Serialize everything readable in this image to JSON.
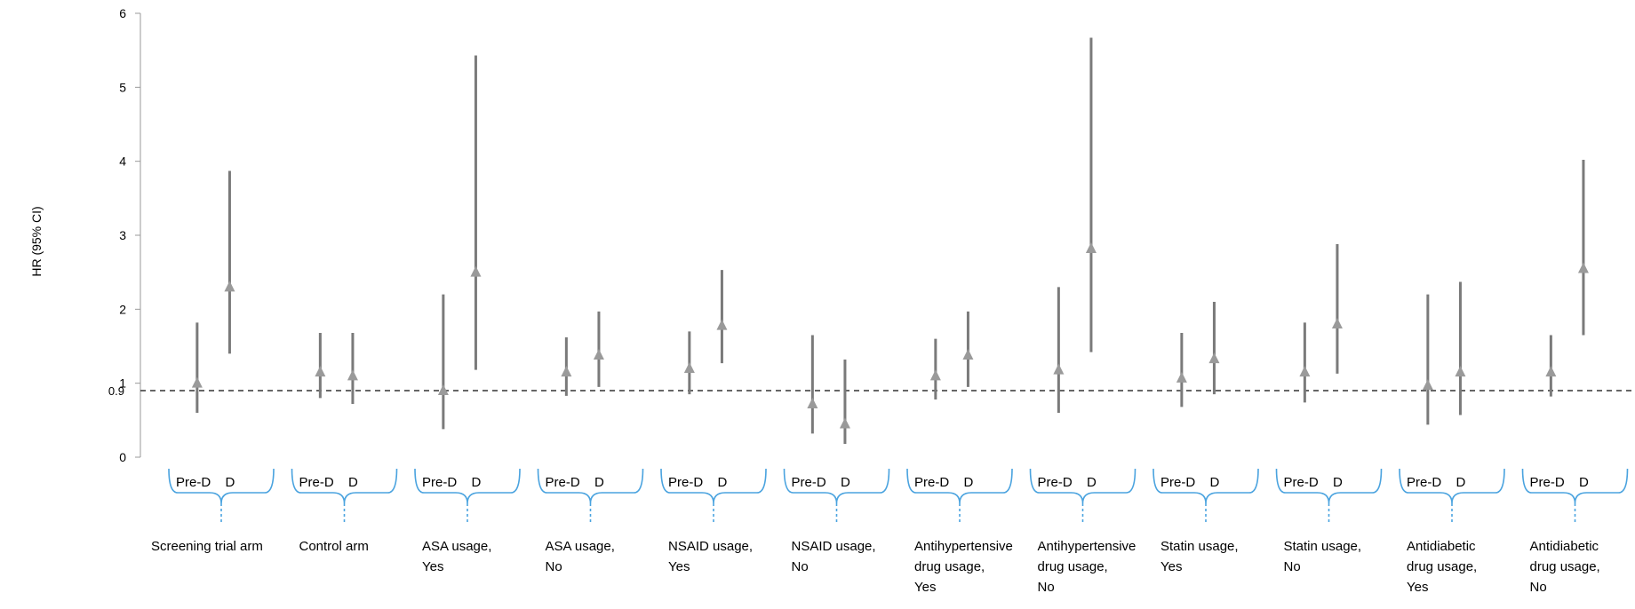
{
  "chart_data": {
    "type": "errorbar",
    "ylabel": "HR (95% CI)",
    "ylim": [
      0,
      6
    ],
    "yticks": [
      "0",
      "1",
      "2",
      "3",
      "4",
      "5",
      "6"
    ],
    "reference_line": 0.9,
    "reference_label": "0.9",
    "grid": false,
    "legend": "none",
    "colors": {
      "point": "#9a9a9a",
      "ci_line": "#7a7a7a",
      "bracket": "#4aa3df",
      "reference": "#333333"
    },
    "groups": [
      {
        "label": [
          "Screening trial arm"
        ],
        "sub_labels": [
          "Pre-D",
          "D"
        ],
        "points": [
          {
            "name": "Pre-D",
            "hr": 1.0,
            "low": 0.6,
            "high": 1.82
          },
          {
            "name": "D",
            "hr": 2.3,
            "low": 1.4,
            "high": 3.87
          }
        ]
      },
      {
        "label": [
          "Control arm"
        ],
        "sub_labels": [
          "Pre-D",
          "D"
        ],
        "points": [
          {
            "name": "Pre-D",
            "hr": 1.15,
            "low": 0.8,
            "high": 1.68
          },
          {
            "name": "D",
            "hr": 1.1,
            "low": 0.72,
            "high": 1.68
          }
        ]
      },
      {
        "label": [
          "ASA usage,",
          "Yes"
        ],
        "sub_labels": [
          "Pre-D",
          "D"
        ],
        "points": [
          {
            "name": "Pre-D",
            "hr": 0.9,
            "low": 0.38,
            "high": 2.2
          },
          {
            "name": "D",
            "hr": 2.5,
            "low": 1.18,
            "high": 5.43
          }
        ]
      },
      {
        "label": [
          "ASA usage,",
          "No"
        ],
        "sub_labels": [
          "Pre-D",
          "D"
        ],
        "points": [
          {
            "name": "Pre-D",
            "hr": 1.15,
            "low": 0.83,
            "high": 1.62
          },
          {
            "name": "D",
            "hr": 1.38,
            "low": 0.95,
            "high": 1.97
          }
        ]
      },
      {
        "label": [
          "NSAID usage,",
          "Yes"
        ],
        "sub_labels": [
          "Pre-D",
          "D"
        ],
        "points": [
          {
            "name": "Pre-D",
            "hr": 1.2,
            "low": 0.85,
            "high": 1.7
          },
          {
            "name": "D",
            "hr": 1.78,
            "low": 1.27,
            "high": 2.53
          }
        ]
      },
      {
        "label": [
          "NSAID usage,",
          "No"
        ],
        "sub_labels": [
          "Pre-D",
          "D"
        ],
        "points": [
          {
            "name": "Pre-D",
            "hr": 0.72,
            "low": 0.32,
            "high": 1.65
          },
          {
            "name": "D",
            "hr": 0.45,
            "low": 0.18,
            "high": 1.32
          }
        ]
      },
      {
        "label": [
          "Antihypertensive",
          "drug usage,",
          "Yes"
        ],
        "sub_labels": [
          "Pre-D",
          "D"
        ],
        "points": [
          {
            "name": "Pre-D",
            "hr": 1.1,
            "low": 0.78,
            "high": 1.6
          },
          {
            "name": "D",
            "hr": 1.38,
            "low": 0.95,
            "high": 1.97
          }
        ]
      },
      {
        "label": [
          "Antihypertensive",
          "drug usage,",
          "No"
        ],
        "sub_labels": [
          "Pre-D",
          "D"
        ],
        "points": [
          {
            "name": "Pre-D",
            "hr": 1.18,
            "low": 0.6,
            "high": 2.3
          },
          {
            "name": "D",
            "hr": 2.82,
            "low": 1.42,
            "high": 5.67
          }
        ]
      },
      {
        "label": [
          "Statin usage,",
          "Yes"
        ],
        "sub_labels": [
          "Pre-D",
          "D"
        ],
        "points": [
          {
            "name": "Pre-D",
            "hr": 1.07,
            "low": 0.68,
            "high": 1.68
          },
          {
            "name": "D",
            "hr": 1.33,
            "low": 0.85,
            "high": 2.1
          }
        ]
      },
      {
        "label": [
          "Statin usage,",
          "No"
        ],
        "sub_labels": [
          "Pre-D",
          "D"
        ],
        "points": [
          {
            "name": "Pre-D",
            "hr": 1.15,
            "low": 0.74,
            "high": 1.82
          },
          {
            "name": "D",
            "hr": 1.8,
            "low": 1.13,
            "high": 2.88
          }
        ]
      },
      {
        "label": [
          "Antidiabetic",
          "drug usage,",
          "Yes"
        ],
        "sub_labels": [
          "Pre-D",
          "D"
        ],
        "points": [
          {
            "name": "Pre-D",
            "hr": 0.97,
            "low": 0.44,
            "high": 2.2
          },
          {
            "name": "D",
            "hr": 1.15,
            "low": 0.57,
            "high": 2.37
          }
        ]
      },
      {
        "label": [
          "Antidiabetic",
          "drug usage,",
          "No"
        ],
        "sub_labels": [
          "Pre-D",
          "D"
        ],
        "points": [
          {
            "name": "Pre-D",
            "hr": 1.15,
            "low": 0.82,
            "high": 1.65
          },
          {
            "name": "D",
            "hr": 2.55,
            "low": 1.65,
            "high": 4.02
          }
        ]
      }
    ]
  }
}
